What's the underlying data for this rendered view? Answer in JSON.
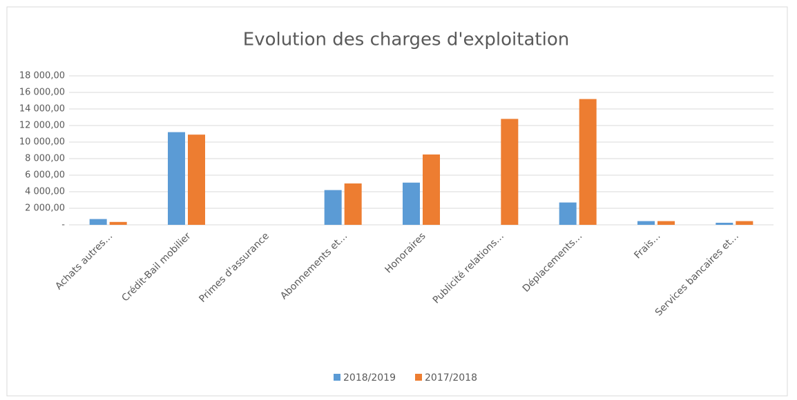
{
  "chart_data": {
    "type": "bar",
    "title": "Evolution des charges d'exploitation",
    "categories": [
      "Achats autres…",
      "Crédit-Bail mobilier",
      "Primes d'assurance",
      "Abonnements et…",
      "Honoraires",
      "Publicité relations…",
      "Déplacements…",
      "Frais…",
      "Services bancaires et…"
    ],
    "series": [
      {
        "name": "2018/2019",
        "color": "#5b9bd5",
        "values": [
          700,
          11200,
          0,
          4200,
          5100,
          0,
          2700,
          450,
          250
        ]
      },
      {
        "name": "2017/2018",
        "color": "#ed7d31",
        "values": [
          350,
          10900,
          0,
          5000,
          8500,
          12800,
          15200,
          450,
          450
        ]
      }
    ],
    "ylim": [
      0,
      18000
    ],
    "yticks": [
      {
        "value": 0,
        "label": "-"
      },
      {
        "value": 2000,
        "label": "2 000,00"
      },
      {
        "value": 4000,
        "label": "4 000,00"
      },
      {
        "value": 6000,
        "label": "6 000,00"
      },
      {
        "value": 8000,
        "label": "8 000,00"
      },
      {
        "value": 10000,
        "label": "10 000,00"
      },
      {
        "value": 12000,
        "label": "12 000,00"
      },
      {
        "value": 14000,
        "label": "14 000,00"
      },
      {
        "value": 16000,
        "label": "16 000,00"
      },
      {
        "value": 18000,
        "label": "18 000,00"
      }
    ],
    "grid": true,
    "legend": "bottom"
  }
}
